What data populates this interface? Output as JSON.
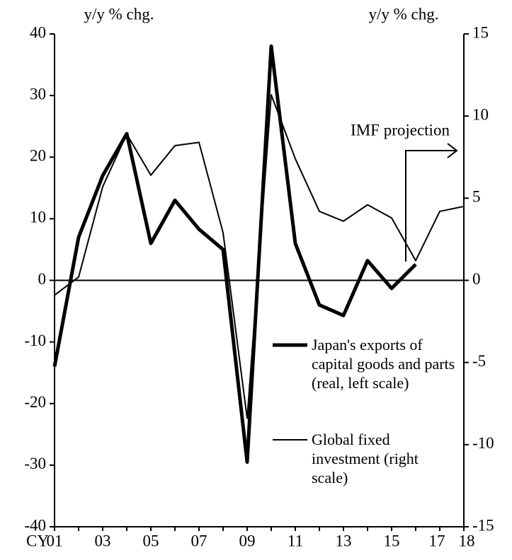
{
  "chart_data": {
    "type": "line",
    "y_label": "y/y % chg.",
    "y2_label": "y/y % chg.",
    "x_label": "CY",
    "annotation": "IMF projection",
    "categories": [
      "01",
      null,
      "03",
      null,
      "05",
      null,
      "07",
      null,
      "09",
      null,
      "11",
      null,
      "13",
      null,
      "15",
      null,
      "17",
      "18"
    ],
    "ylim": [
      -40,
      40
    ],
    "yticks": [
      -40,
      -30,
      -20,
      -10,
      0,
      10,
      20,
      30,
      40
    ],
    "y2lim": [
      -15,
      15
    ],
    "y2ticks": [
      -15,
      -10,
      -5,
      0,
      5,
      10,
      15
    ],
    "series": [
      {
        "name": "Japan's exports of capital goods and parts (real, left scale)",
        "color": "#000000",
        "width": 5,
        "values": [
          -14,
          7,
          17,
          23.8,
          6,
          13,
          8.3,
          5,
          -29.5,
          38,
          6,
          -4,
          -5.7,
          3.2,
          -1.3,
          2.6,
          null,
          null
        ]
      },
      {
        "name": "Global fixed investment (right scale)",
        "color": "#000000",
        "width": 2,
        "axis": "y2",
        "values": [
          -0.9,
          0.2,
          5.7,
          8.9,
          6.4,
          8.2,
          8.4,
          2.9,
          -8.4,
          11.3,
          7.4,
          4.2,
          3.6,
          4.6,
          3.8,
          1.2,
          4.2,
          4.5
        ]
      }
    ]
  }
}
